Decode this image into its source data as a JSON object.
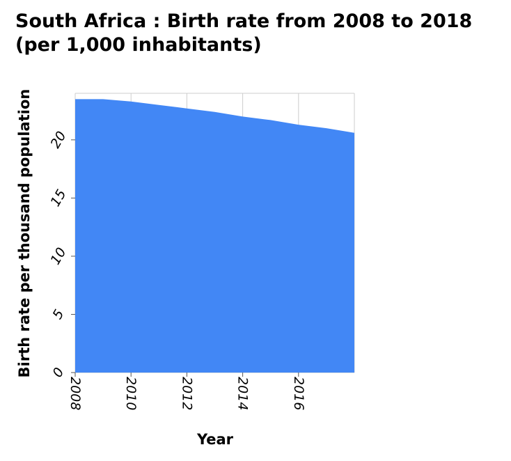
{
  "chart_data": {
    "type": "area",
    "title_lines": [
      "South Africa : Birth rate from 2008 to 2018",
      "(per 1,000 inhabitants)"
    ],
    "xlabel": "Year",
    "ylabel": "Birth rate per thousand population",
    "x": [
      2008,
      2009,
      2010,
      2011,
      2012,
      2013,
      2014,
      2015,
      2016,
      2017,
      2018
    ],
    "series": [
      {
        "values": [
          23.5,
          23.5,
          23.3,
          23.0,
          22.7,
          22.4,
          22.0,
          21.7,
          21.3,
          21.0,
          20.6
        ],
        "color": "#4287f5"
      }
    ],
    "xlim": [
      2008,
      2018
    ],
    "ylim": [
      0,
      24
    ],
    "xticks": [
      2008,
      2010,
      2012,
      2014,
      2016
    ],
    "yticks": [
      0,
      5,
      10,
      15,
      20
    ],
    "grid": "vertical-and-horizontal",
    "grid_color": "#cccccc",
    "legend": "none"
  }
}
